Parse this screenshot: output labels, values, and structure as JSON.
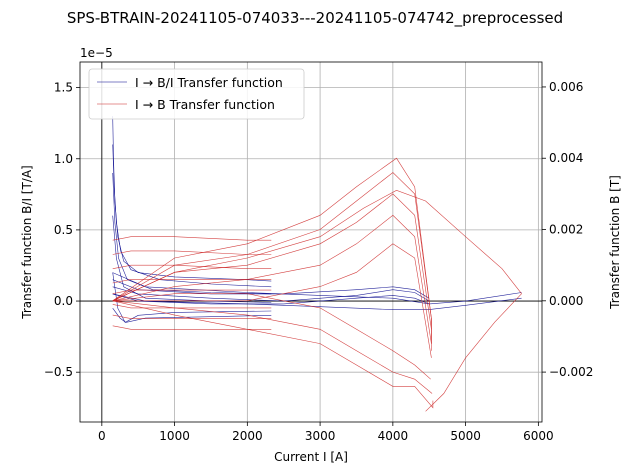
{
  "chart_data": {
    "type": "line",
    "title": "SPS-BTRAIN-20241105-074033---20241105-074742_preprocessed",
    "xlabel": "Current I [A]",
    "ylabel": "Transfer function B/I [T/A]",
    "ylabel_right": "Transfer function B [T]",
    "y_offset_label": "1e−5",
    "xlim": [
      -300,
      6050
    ],
    "ylim": [
      -0.85,
      1.68
    ],
    "ylim_right": [
      -0.0034,
      0.0067
    ],
    "x_ticks": [
      0,
      1000,
      2000,
      3000,
      4000,
      5000,
      6000
    ],
    "x_tick_labels": [
      "0",
      "1000",
      "2000",
      "3000",
      "4000",
      "5000",
      "6000"
    ],
    "y_ticks": [
      -0.5,
      0.0,
      0.5,
      1.0,
      1.5
    ],
    "y_tick_labels": [
      "−0.5",
      "0.0",
      "0.5",
      "1.0",
      "1.5"
    ],
    "y_ticks_right": [
      -0.002,
      0.0,
      0.002,
      0.004,
      0.006
    ],
    "y_tick_labels_right": [
      "−0.002",
      "0.000",
      "0.002",
      "0.004",
      "0.006"
    ],
    "grid": true,
    "legend_position": "top-left",
    "colors": {
      "transfer_bi": "#00008b",
      "transfer_b": "#cc2222"
    },
    "series": [
      {
        "name": "I → B/I Transfer function",
        "color": "#00008b",
        "axis": "left",
        "curves": [
          [
            [
              150,
              1.3
            ],
            [
              160,
              1.0
            ],
            [
              180,
              0.7
            ],
            [
              220,
              0.45
            ],
            [
              300,
              0.28
            ],
            [
              500,
              0.2
            ],
            [
              1000,
              0.17
            ],
            [
              2000,
              0.15
            ],
            [
              2330,
              0.14
            ]
          ],
          [
            [
              150,
              1.1
            ],
            [
              170,
              0.8
            ],
            [
              200,
              0.55
            ],
            [
              260,
              0.35
            ],
            [
              400,
              0.22
            ],
            [
              800,
              0.15
            ],
            [
              1500,
              0.12
            ],
            [
              2330,
              0.1
            ]
          ],
          [
            [
              150,
              0.9
            ],
            [
              180,
              0.55
            ],
            [
              230,
              0.3
            ],
            [
              350,
              0.15
            ],
            [
              700,
              0.08
            ],
            [
              1500,
              0.06
            ],
            [
              2330,
              0.05
            ]
          ],
          [
            [
              150,
              0.6
            ],
            [
              200,
              0.3
            ],
            [
              300,
              0.1
            ],
            [
              600,
              0.02
            ],
            [
              1500,
              0.0
            ],
            [
              2330,
              -0.01
            ]
          ],
          [
            [
              150,
              0.2
            ],
            [
              220,
              -0.05
            ],
            [
              320,
              -0.15
            ],
            [
              500,
              -0.1
            ],
            [
              1000,
              -0.08
            ],
            [
              2330,
              -0.07
            ]
          ],
          [
            [
              150,
              -0.05
            ],
            [
              250,
              -0.12
            ],
            [
              330,
              -0.15
            ],
            [
              600,
              -0.12
            ],
            [
              1500,
              -0.11
            ],
            [
              2330,
              -0.1
            ]
          ],
          [
            [
              150,
              0.1
            ],
            [
              500,
              0.05
            ],
            [
              1500,
              0.02
            ],
            [
              2500,
              0.0
            ],
            [
              3500,
              0.04
            ],
            [
              4000,
              0.08
            ],
            [
              4300,
              0.06
            ],
            [
              4500,
              0.0
            ]
          ],
          [
            [
              150,
              0.15
            ],
            [
              500,
              0.08
            ],
            [
              1500,
              0.05
            ],
            [
              2500,
              0.05
            ],
            [
              3500,
              0.08
            ],
            [
              4000,
              0.1
            ],
            [
              4300,
              0.08
            ],
            [
              4500,
              0.02
            ]
          ],
          [
            [
              150,
              0.05
            ],
            [
              500,
              0.0
            ],
            [
              1500,
              -0.02
            ],
            [
              2500,
              -0.02
            ],
            [
              3500,
              0.02
            ],
            [
              4000,
              0.04
            ],
            [
              4300,
              0.02
            ],
            [
              4500,
              -0.02
            ]
          ],
          [
            [
              150,
              0.2
            ],
            [
              600,
              0.1
            ],
            [
              2000,
              0.06
            ],
            [
              3000,
              0.04
            ],
            [
              4000,
              0.02
            ],
            [
              4500,
              -0.02
            ],
            [
              5000,
              0.0
            ],
            [
              5770,
              0.06
            ]
          ],
          [
            [
              150,
              0.05
            ],
            [
              600,
              0.0
            ],
            [
              2000,
              -0.02
            ],
            [
              3000,
              -0.04
            ],
            [
              4000,
              -0.06
            ],
            [
              4500,
              -0.06
            ],
            [
              5000,
              -0.03
            ],
            [
              5770,
              0.02
            ]
          ]
        ]
      },
      {
        "name": "I → B Transfer function",
        "color": "#cc2222",
        "axis": "right",
        "curves": [
          [
            [
              150,
              0.0005
            ],
            [
              400,
              0.0006
            ],
            [
              1000,
              0.0006
            ],
            [
              2000,
              0.0006
            ],
            [
              2330,
              0.0006
            ]
          ],
          [
            [
              150,
              0.0009
            ],
            [
              400,
              0.001
            ],
            [
              1000,
              0.001
            ],
            [
              2000,
              0.0009
            ],
            [
              2330,
              0.0009
            ]
          ],
          [
            [
              150,
              0.0013
            ],
            [
              400,
              0.0014
            ],
            [
              1000,
              0.0014
            ],
            [
              2000,
              0.0013
            ],
            [
              2330,
              0.0013
            ]
          ],
          [
            [
              150,
              0.0017
            ],
            [
              400,
              0.0018
            ],
            [
              1000,
              0.0018
            ],
            [
              2000,
              0.0017
            ],
            [
              2330,
              0.0017
            ]
          ],
          [
            [
              150,
              0.0002
            ],
            [
              400,
              0.0003
            ],
            [
              1000,
              0.0003
            ],
            [
              2330,
              0.0003
            ]
          ],
          [
            [
              150,
              -0.0001
            ],
            [
              400,
              -0.0002
            ],
            [
              1000,
              -0.0002
            ],
            [
              2330,
              -0.0002
            ]
          ],
          [
            [
              150,
              -0.0004
            ],
            [
              400,
              -0.0005
            ],
            [
              1000,
              -0.0005
            ],
            [
              2330,
              -0.0005
            ]
          ],
          [
            [
              150,
              -0.0007
            ],
            [
              400,
              -0.0008
            ],
            [
              1000,
              -0.0008
            ],
            [
              2330,
              -0.0008
            ]
          ],
          [
            [
              150,
              0.0
            ],
            [
              1000,
              0.001
            ],
            [
              2000,
              0.0013
            ],
            [
              3000,
              0.002
            ],
            [
              3500,
              0.0028
            ],
            [
              4000,
              0.0036
            ],
            [
              4300,
              0.003
            ],
            [
              4530,
              -0.0005
            ],
            [
              4530,
              -0.0012
            ]
          ],
          [
            [
              150,
              0.0
            ],
            [
              1000,
              0.0012
            ],
            [
              2000,
              0.0016
            ],
            [
              3000,
              0.0024
            ],
            [
              3500,
              0.0032
            ],
            [
              4050,
              0.004
            ],
            [
              4300,
              0.0032
            ],
            [
              4530,
              -0.0005
            ],
            [
              4530,
              -0.0014
            ]
          ],
          [
            [
              150,
              0.0
            ],
            [
              1000,
              0.0008
            ],
            [
              2000,
              0.001
            ],
            [
              3000,
              0.0016
            ],
            [
              3500,
              0.0022
            ],
            [
              4000,
              0.003
            ],
            [
              4300,
              0.0024
            ],
            [
              4530,
              -0.0008
            ]
          ],
          [
            [
              150,
              0.0
            ],
            [
              1000,
              0.0004
            ],
            [
              2000,
              0.0006
            ],
            [
              3000,
              0.001
            ],
            [
              3500,
              0.0016
            ],
            [
              4000,
              0.0024
            ],
            [
              4300,
              0.0018
            ],
            [
              4530,
              -0.0012
            ]
          ],
          [
            [
              150,
              0.0
            ],
            [
              1000,
              0.0
            ],
            [
              2000,
              0.0
            ],
            [
              3000,
              0.0004
            ],
            [
              3500,
              0.0008
            ],
            [
              4000,
              0.0016
            ],
            [
              4300,
              0.0012
            ],
            [
              4530,
              -0.0016
            ]
          ],
          [
            [
              150,
              0.0
            ],
            [
              1000,
              -0.0004
            ],
            [
              2000,
              -0.0008
            ],
            [
              3000,
              -0.0012
            ],
            [
              3500,
              -0.0018
            ],
            [
              4000,
              -0.0024
            ],
            [
              4300,
              -0.0024
            ],
            [
              4550,
              -0.003
            ],
            [
              4550,
              -0.0028
            ]
          ],
          [
            [
              150,
              0.0
            ],
            [
              1000,
              -0.0002
            ],
            [
              2000,
              -0.0004
            ],
            [
              3000,
              -0.0008
            ],
            [
              3500,
              -0.0014
            ],
            [
              4000,
              -0.002
            ],
            [
              4300,
              -0.0022
            ],
            [
              4540,
              -0.0026
            ]
          ],
          [
            [
              150,
              0.0
            ],
            [
              1000,
              0.0002
            ],
            [
              2000,
              0.0002
            ],
            [
              3000,
              -0.0002
            ],
            [
              3500,
              -0.0008
            ],
            [
              4000,
              -0.0014
            ],
            [
              4300,
              -0.0018
            ],
            [
              4520,
              -0.0022
            ]
          ],
          [
            [
              150,
              0.0
            ],
            [
              1000,
              0.0008
            ],
            [
              2000,
              0.0012
            ],
            [
              3000,
              0.0018
            ],
            [
              3600,
              0.0026
            ],
            [
              4050,
              0.0031
            ],
            [
              4450,
              0.0028
            ],
            [
              5000,
              0.0018
            ],
            [
              5500,
              0.0009
            ],
            [
              5770,
              0.0002
            ]
          ],
          [
            [
              4450,
              -0.0031
            ],
            [
              4700,
              -0.0026
            ],
            [
              5000,
              -0.0016
            ],
            [
              5400,
              -0.0006
            ],
            [
              5770,
              0.0002
            ]
          ]
        ]
      }
    ]
  }
}
